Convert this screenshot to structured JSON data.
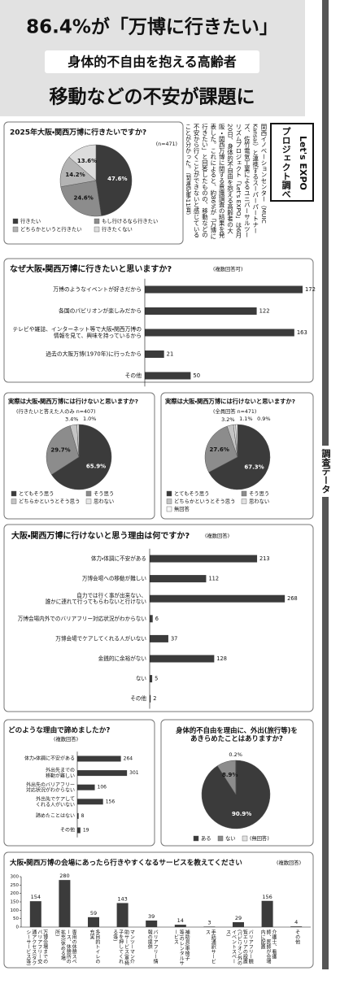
{
  "headline": [
    "86.4%が「万博に行きたい」",
    "身体的不自由を抱える高齢者",
    "移動などの不安が課題に"
  ],
  "section_label": "調査データ",
  "article": {
    "source": [
      "Let's EXPO",
      "プロジェクト調べ"
    ],
    "body": "関西イノベーションセンター（MUIC Kansai）と連携するスーパーパートナーズ、佐竹電気工業によるユニバーサルツーリズムプロジェクト「Let's EXPO」は6月20日、身体的不自由を抱える高齢者の大阪・関西万博に関する意識調査の結果を発表した。これによると、約86%が「万博に行きたい」と回答したものの、移動などの不安から行くことができないと感じていることが分かった。（関連記事11面）"
  },
  "chart_data": [
    {
      "type": "pie",
      "title": "2025年大阪・関西万博に行きたいですか?",
      "note": "(n=471)",
      "categories": [
        "行きたい",
        "もし行けるなら行きたい",
        "どちらかというと行きたい",
        "行きたくない"
      ],
      "values": [
        47.6,
        24.6,
        14.2,
        13.6
      ],
      "value_labels": [
        "47.6%",
        "24.6%",
        "14.2%",
        "13.6%"
      ],
      "colors": [
        "#3b3b3b",
        "#8c8c8c",
        "#b4b4b4",
        "#dcdcdc"
      ]
    },
    {
      "type": "hbar",
      "title": "なぜ大阪・関西万博に行きたいと思いますか?",
      "note": "(複数回答可)",
      "categories": [
        "万博のようなイベントが好きだから",
        "各国のパビリオンが楽しみだから",
        "テレビや雑誌、インターネット等で大阪・関西万博の\n情報を見て、興味を持っているから",
        "過去の大阪万博(1970年)に行ったから",
        "その他"
      ],
      "values": [
        172,
        122,
        163,
        21,
        50
      ],
      "color": "#3b3b3b",
      "xlim": [
        0,
        180
      ]
    },
    {
      "type": "pie",
      "title": "実際は大阪・関西万博には行けないと思いますか?",
      "subtitle": "(行きたいと答えた人のみ n=407)",
      "categories": [
        "とてもそう思う",
        "そう思う",
        "どちらかというとそう思う",
        "思わない"
      ],
      "values": [
        65.9,
        29.7,
        3.4,
        1.0
      ],
      "value_labels": [
        "65.9%",
        "29.7%",
        "3.4%",
        "1.0%"
      ],
      "colors": [
        "#3b3b3b",
        "#8c8c8c",
        "#c4c4c4",
        "#e6e6e6"
      ]
    },
    {
      "type": "pie",
      "title": "実際は大阪・関西万博には行けないと思いますか?",
      "subtitle": "(全員回答 n=471)",
      "categories": [
        "とてもそう思う",
        "そう思う",
        "どちらかというとそう思う",
        "思わない",
        "無回答"
      ],
      "values": [
        67.3,
        27.6,
        3.2,
        1.1,
        0.9
      ],
      "value_labels": [
        "67.3%",
        "27.6%",
        "3.2%",
        "1.1%",
        "0.9%"
      ],
      "colors": [
        "#3b3b3b",
        "#8c8c8c",
        "#c4c4c4",
        "#e0e0e0",
        "#f7f7f7"
      ]
    },
    {
      "type": "hbar",
      "title": "大阪・関西万博に行けないと思う理由は何ですか?",
      "note": "(複数回答)",
      "categories": [
        "体力・体調に不安がある",
        "万博会場への移動が難しい",
        "自力では行く事が出来ない、\n誰かに連れて行ってもらわないと行けない",
        "万博会場内外でのバリアフリー対応状況がわからない",
        "万博会場でケアしてくれる人がいない",
        "金銭的に余裕がない",
        "ない",
        "その他"
      ],
      "values": [
        213,
        112,
        268,
        6,
        37,
        128,
        5,
        2
      ],
      "color": "#3b3b3b",
      "xlim": [
        0,
        300
      ]
    },
    {
      "type": "hbar",
      "title": "どのような理由で諦めましたか?",
      "note": "(複数回答)",
      "categories": [
        "体力・体調に不安がある",
        "外出先までの\n移動が難しい",
        "外出先のバリアフリー\n対応状況がわからない",
        "外出先でケアして\nくれる人がいない",
        "諦めたことはない",
        "その他"
      ],
      "values": [
        264,
        301,
        106,
        156,
        8,
        19
      ],
      "color": "#3b3b3b",
      "xlim": [
        0,
        320
      ]
    },
    {
      "type": "pie",
      "title": "身体的不自由を理由に、外出(旅行等)を\nあきらめたことはありますか?",
      "categories": [
        "ある",
        "ない",
        "(無回答)"
      ],
      "values": [
        90.9,
        8.9,
        0.2
      ],
      "value_labels": [
        "90.9%",
        "8.9%",
        "0.2%"
      ],
      "colors": [
        "#3b3b3b",
        "#8c8c8c",
        "#e0e0e0"
      ]
    },
    {
      "type": "bar",
      "title": "大阪・関西万博の会場にあったら行きやすくなるサービスを教えてください",
      "note": "(複数回答)",
      "categories": [
        "万博会場までのバリアフリー交通アクセス(タクシーサービス等)",
        "専用の休憩スペース、休憩所の拡充(休める場所)",
        "多目的トイレの充実",
        "マンツーマン介助サービス(車椅子を押してくれる等)",
        "バリアフリー情報の提供",
        "補助具(車椅子等)のレンタルサービス",
        "手話通訳サービス",
        "バリアフリー観覧エリアの設置(パビリオン外のイベントスペース)",
        "介護士、看護師、医師が会場内に配置",
        "その他"
      ],
      "values": [
        154,
        280,
        59,
        143,
        39,
        14,
        3,
        29,
        156,
        4
      ],
      "color": "#3b3b3b",
      "ylim": [
        0,
        300
      ],
      "yticks": [
        0,
        50,
        100,
        150,
        200,
        250,
        300
      ]
    }
  ]
}
